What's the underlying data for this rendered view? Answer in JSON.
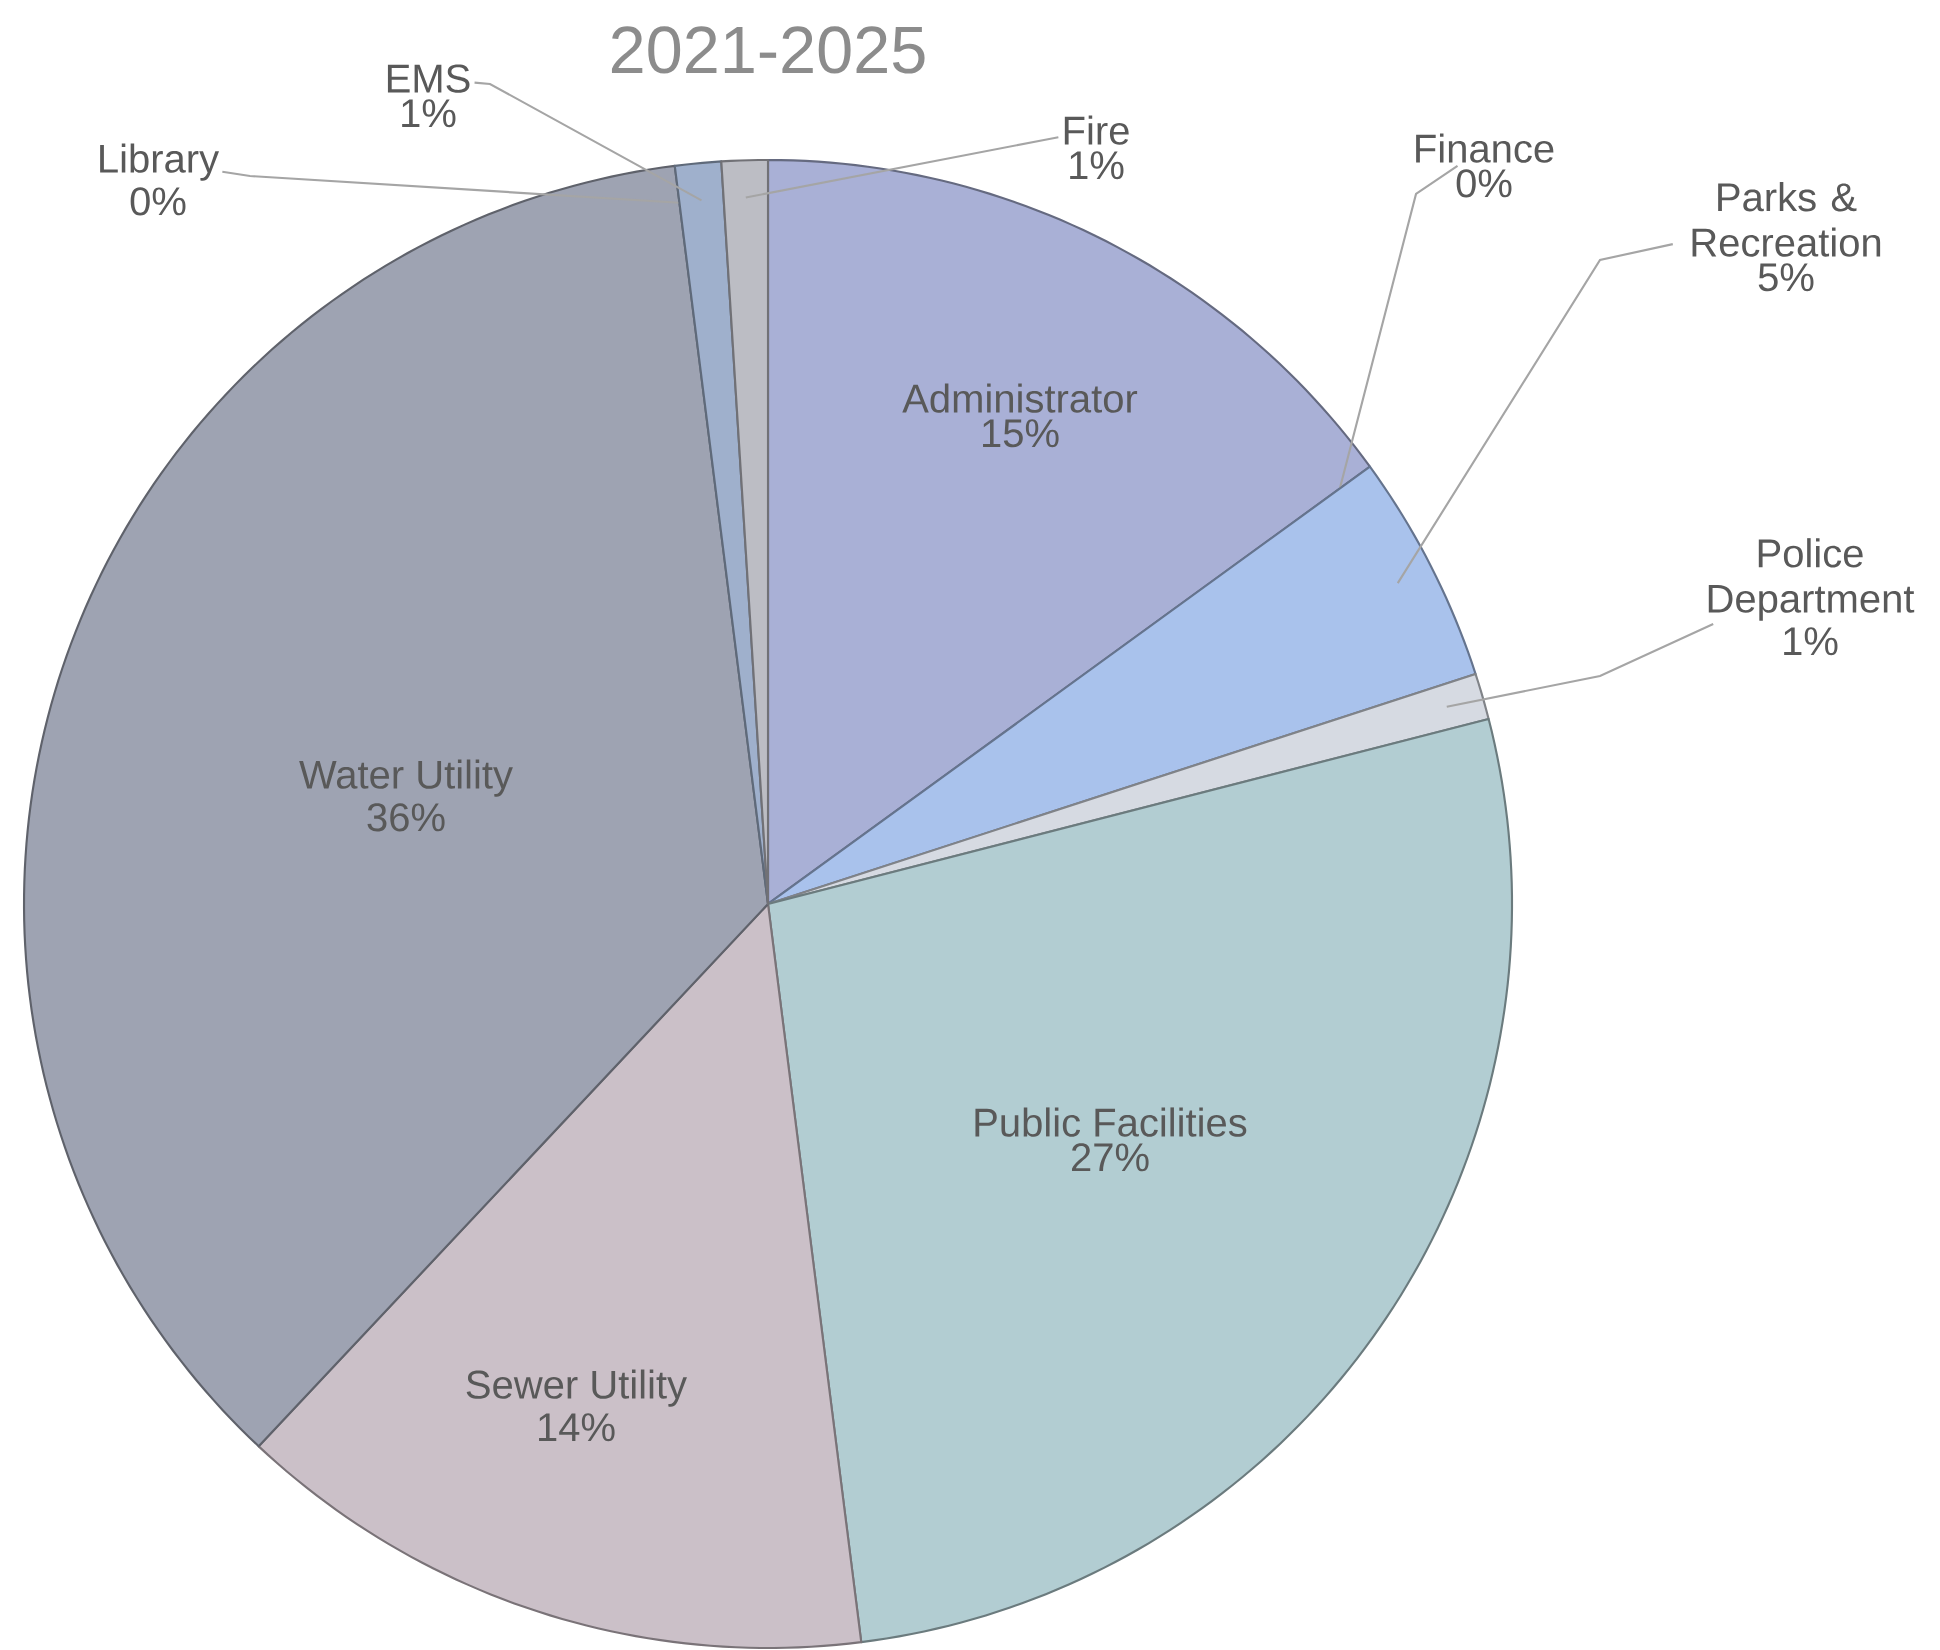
{
  "chart_data": {
    "type": "pie",
    "title": "2021-2025",
    "categories": [
      "Administrator",
      "Finance",
      "Parks & Recreation",
      "Police Department",
      "Public Facilities",
      "Sewer Utility",
      "Water Utility",
      "Library",
      "EMS",
      "Fire"
    ],
    "values": [
      15,
      0,
      5,
      1,
      27,
      14,
      36,
      0,
      1,
      1
    ],
    "value_labels": [
      "15%",
      "0%",
      "5%",
      "1%",
      "27%",
      "14%",
      "36%",
      "0%",
      "1%",
      "1%"
    ],
    "colors": [
      "#a9b0d6",
      "#c4cce8",
      "#a9c2ec",
      "#d6dae2",
      "#b2cdd2",
      "#cbc0c8",
      "#9ea3b2",
      "#6f86ad",
      "#9fb0cc",
      "#bcbdc4"
    ]
  }
}
